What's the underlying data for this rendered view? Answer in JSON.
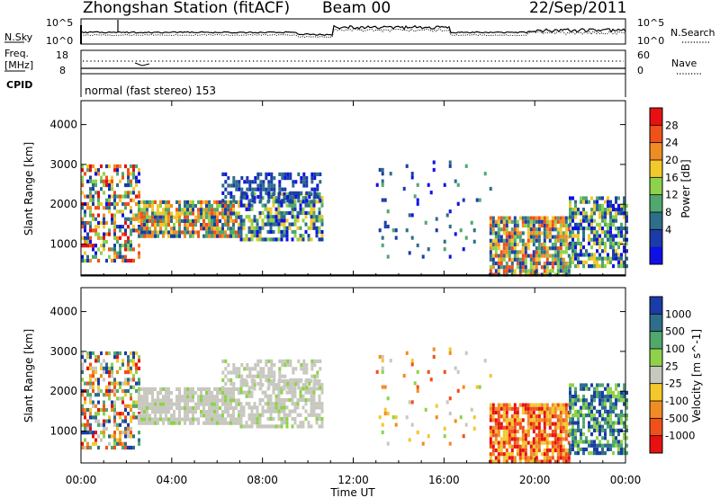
{
  "header": {
    "station": "Zhongshan Station (fitACF)",
    "beam": "Beam 00",
    "date": "22/Sep/2011"
  },
  "noise_panel": {
    "left_label": "N.Sky",
    "left_ticks": [
      "10^5",
      "10^0"
    ],
    "right_label": "N.Search",
    "right_ticks": [
      "10^5",
      "10^0"
    ],
    "right_line_style": "dotted"
  },
  "freq_panel": {
    "left_label_1": "Freq.",
    "left_label_2": "[MHz]",
    "left_ticks": [
      "18",
      "8"
    ],
    "right_label": "Nave",
    "right_ticks": [
      "60",
      "0"
    ],
    "right_line_style": "dotted"
  },
  "cpid": {
    "label": "CPID",
    "text": "normal (fast stereo) 153"
  },
  "x_axis": {
    "label": "Time UT",
    "ticks": [
      "00:00",
      "04:00",
      "08:00",
      "12:00",
      "16:00",
      "20:00",
      "00:00"
    ],
    "hours": [
      0,
      4,
      8,
      12,
      16,
      20,
      24
    ]
  },
  "chart_data": [
    {
      "type": "heatmap",
      "title": "",
      "xlabel": "",
      "ylabel": "Slant Range [km]",
      "xlim_hours": [
        0,
        24
      ],
      "ylim": [
        200,
        4600
      ],
      "y_ticks": [
        1000,
        2000,
        3000,
        4000
      ],
      "colorbar": {
        "label": "Power [dB]",
        "ticks": [
          "28",
          "24",
          "20",
          "16",
          "12",
          "8",
          "4"
        ],
        "colors_top_to_bottom": [
          "#e81010",
          "#f0501a",
          "#f08c24",
          "#f2c82c",
          "#8ed24a",
          "#50a86c",
          "#2e6e8a",
          "#1a3ca8",
          "#1010e6"
        ]
      },
      "echo_regions": [
        {
          "t": [
            0.0,
            2.5
          ],
          "r": [
            600,
            3000
          ],
          "level": "mixed"
        },
        {
          "t": [
            2.5,
            7.0
          ],
          "r": [
            1200,
            2100
          ],
          "level": "high"
        },
        {
          "t": [
            7.0,
            10.6
          ],
          "r": [
            1100,
            2300
          ],
          "level": "medium"
        },
        {
          "t": [
            6.2,
            10.6
          ],
          "r": [
            2100,
            2800
          ],
          "level": "low"
        },
        {
          "t": [
            13.0,
            18.0
          ],
          "r": [
            700,
            3100
          ],
          "level": "sparse"
        },
        {
          "t": [
            18.0,
            21.5
          ],
          "r": [
            250,
            1700
          ],
          "level": "high"
        },
        {
          "t": [
            21.5,
            24.0
          ],
          "r": [
            400,
            2200
          ],
          "level": "medium"
        }
      ]
    },
    {
      "type": "heatmap",
      "title": "",
      "xlabel": "Time UT",
      "ylabel": "Slant Range [km]",
      "xlim_hours": [
        0,
        24
      ],
      "ylim": [
        200,
        4600
      ],
      "y_ticks": [
        1000,
        2000,
        3000,
        4000
      ],
      "colorbar": {
        "label": "Velocity [m s^-1]",
        "ticks": [
          "1000",
          "500",
          "100",
          "25",
          "-25",
          "-100",
          "-500",
          "-1000"
        ],
        "colors_top_to_bottom": [
          "#1a3ca8",
          "#2e6e8a",
          "#50a86c",
          "#8ed24a",
          "#c8c8c0",
          "#f2c82c",
          "#f08c24",
          "#f0501a",
          "#e81010"
        ]
      },
      "echo_regions": [
        {
          "t": [
            0.0,
            2.5
          ],
          "r": [
            600,
            3000
          ],
          "level": "mixed"
        },
        {
          "t": [
            2.5,
            7.0
          ],
          "r": [
            1200,
            2100
          ],
          "level": "ground"
        },
        {
          "t": [
            7.0,
            10.6
          ],
          "r": [
            1100,
            2300
          ],
          "level": "ground"
        },
        {
          "t": [
            6.2,
            10.6
          ],
          "r": [
            2100,
            2800
          ],
          "level": "ground"
        },
        {
          "t": [
            13.0,
            18.0
          ],
          "r": [
            700,
            3100
          ],
          "level": "sparse"
        },
        {
          "t": [
            18.0,
            21.5
          ],
          "r": [
            250,
            1700
          ],
          "level": "negative"
        },
        {
          "t": [
            21.5,
            24.0
          ],
          "r": [
            400,
            2200
          ],
          "level": "positive"
        }
      ]
    }
  ]
}
